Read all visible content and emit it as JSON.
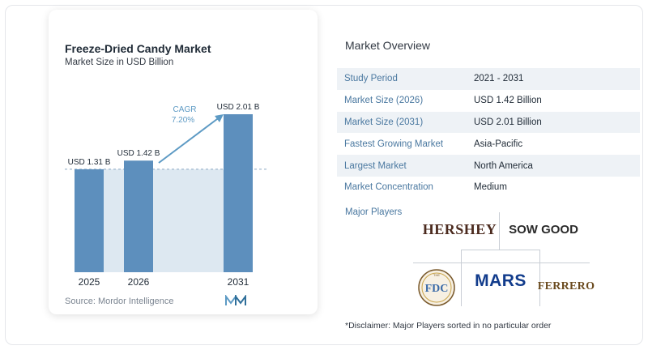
{
  "chart": {
    "title": "Freeze-Dried Candy Market",
    "subtitle": "Market Size in USD Billion",
    "source": "Source:  Mordor Intelligence",
    "cagr_label": "CAGR",
    "cagr_value": "7.20%",
    "bar_color": "#5d8fbd",
    "highlight_color": "#dde8f1",
    "arrow_color": "#5d9ac4"
  },
  "chart_data": {
    "type": "bar",
    "title": "Freeze-Dried Candy Market",
    "subtitle": "Market Size in USD Billion",
    "categories": [
      "2025",
      "2026",
      "2031"
    ],
    "values": [
      1.31,
      1.42,
      2.01
    ],
    "data_labels": [
      "USD 1.31 B",
      "USD 1.42 B",
      "USD 2.01 B"
    ],
    "annotation": "CAGR 7.20%",
    "ylim": [
      0,
      2.01
    ],
    "grid": false
  },
  "overview": {
    "title": "Market Overview",
    "rows": [
      {
        "key": "Study Period",
        "value": "2021 - 2031"
      },
      {
        "key": "Market Size (2026)",
        "value": "USD 1.42 Billion"
      },
      {
        "key": "Market Size (2031)",
        "value": "USD 2.01 Billion"
      },
      {
        "key": "Fastest Growing Market",
        "value": "Asia-Pacific"
      },
      {
        "key": "Largest Market",
        "value": "North America"
      },
      {
        "key": "Market Concentration",
        "value": "Medium"
      }
    ],
    "players_label": "Major Players",
    "players": [
      "HERSHEY",
      "SOW GOOD",
      "The FDC Freeze Dried Candy Company",
      "MARS",
      "FERRERO"
    ],
    "disclaimer": "*Disclaimer: Major Players sorted in no particular order"
  }
}
